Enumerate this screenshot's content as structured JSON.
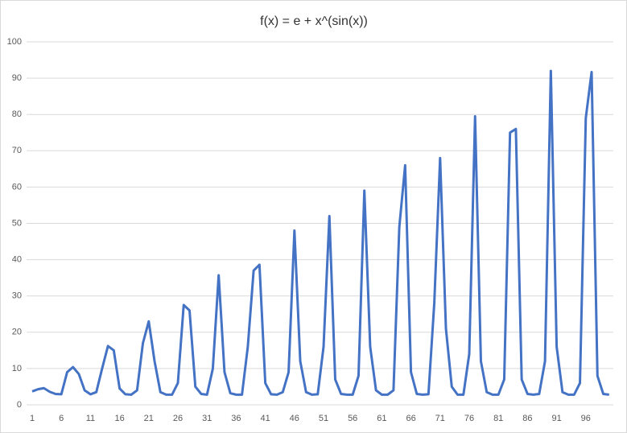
{
  "chart_data": {
    "type": "line",
    "title": "f(x) = e + x^(sin(x))",
    "categories": [
      1,
      null,
      null,
      null,
      null,
      6,
      null,
      null,
      null,
      null,
      11,
      null,
      null,
      null,
      null,
      16,
      null,
      null,
      null,
      null,
      21,
      null,
      null,
      null,
      null,
      26,
      null,
      null,
      null,
      null,
      31,
      null,
      null,
      null,
      null,
      36,
      null,
      null,
      null,
      null,
      41,
      null,
      null,
      null,
      null,
      46,
      null,
      null,
      null,
      null,
      51,
      null,
      null,
      null,
      null,
      56,
      null,
      null,
      null,
      null,
      61,
      null,
      null,
      null,
      null,
      66,
      null,
      null,
      null,
      null,
      71,
      null,
      null,
      null,
      null,
      76,
      null,
      null,
      null,
      null,
      81,
      null,
      null,
      null,
      null,
      86,
      null,
      null,
      null,
      null,
      91,
      null,
      null,
      null,
      null,
      96,
      null,
      null,
      null,
      null
    ],
    "values": [
      3.7,
      4.3,
      4.6,
      3.6,
      3.0,
      2.9,
      9.0,
      10.4,
      8.5,
      4.0,
      2.9,
      3.5,
      10,
      16.2,
      15,
      4.5,
      2.9,
      2.8,
      4,
      17,
      23,
      12,
      3.5,
      2.8,
      2.8,
      6,
      27.5,
      26,
      5,
      3,
      2.8,
      10,
      35.7,
      9,
      3.2,
      2.8,
      2.8,
      16,
      37,
      38.6,
      6,
      2.9,
      2.8,
      3.5,
      9,
      48,
      12,
      3.5,
      2.8,
      2.9,
      16,
      52,
      7,
      3,
      2.8,
      2.8,
      8,
      59,
      16,
      4,
      2.8,
      2.8,
      4,
      49,
      66,
      9,
      3,
      2.8,
      2.9,
      28,
      68,
      21,
      5,
      2.8,
      2.8,
      14,
      79.5,
      12,
      3.5,
      2.8,
      2.8,
      7,
      75,
      76,
      7,
      3,
      2.8,
      3,
      12,
      92,
      16,
      3.5,
      2.8,
      2.8,
      6,
      79,
      91.7,
      8,
      3,
      2.8
    ],
    "color": "#4472c4",
    "ylim": [
      0,
      100
    ],
    "yticks": [
      0,
      10,
      20,
      30,
      40,
      50,
      60,
      70,
      80,
      90,
      100
    ],
    "grid": true
  }
}
